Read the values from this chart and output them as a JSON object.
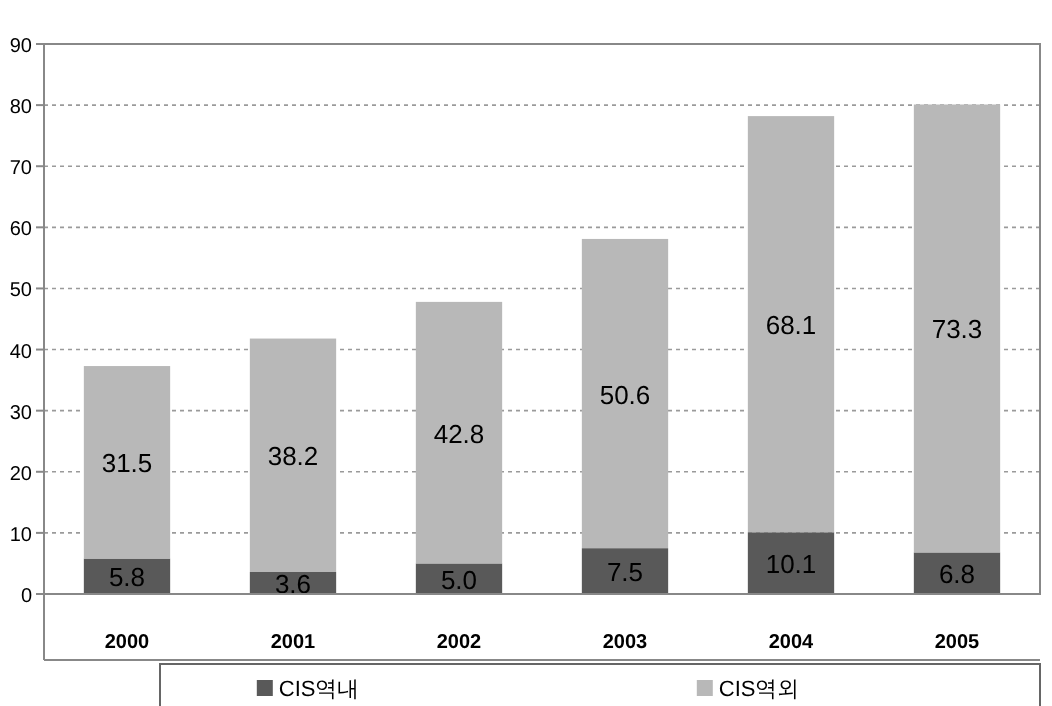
{
  "chart_data": {
    "type": "bar",
    "stacked": true,
    "categories": [
      "2000",
      "2001",
      "2002",
      "2003",
      "2004",
      "2005"
    ],
    "series": [
      {
        "name": "CIS역내",
        "color": "#595959",
        "values": [
          5.8,
          3.6,
          5.0,
          7.5,
          10.1,
          6.8
        ],
        "value_labels": [
          "5.8",
          "3.6",
          "5.0",
          "7.5",
          "10.1",
          "6.8"
        ]
      },
      {
        "name": "CIS역외",
        "color": "#b8b8b8",
        "values": [
          31.5,
          38.2,
          42.8,
          50.6,
          68.1,
          73.3
        ],
        "value_labels": [
          "31.5",
          "38.2",
          "42.8",
          "50.6",
          "68.1",
          "73.3"
        ]
      }
    ],
    "ylim": [
      0,
      90
    ],
    "yticks": [
      0,
      10,
      20,
      30,
      40,
      50,
      60,
      70,
      80,
      90
    ],
    "grid": "y",
    "legend": "bottom"
  }
}
